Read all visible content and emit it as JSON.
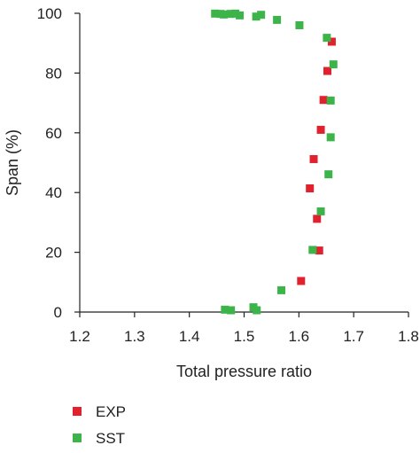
{
  "chart_data": {
    "type": "scatter",
    "xlabel": "Total pressure ratio",
    "ylabel": "Span (%)",
    "xlim": [
      1.2,
      1.8
    ],
    "ylim": [
      0,
      100
    ],
    "x_ticks": [
      "1.2",
      "1.3",
      "1.4",
      "1.5",
      "1.6",
      "1.7",
      "1.8"
    ],
    "y_ticks": [
      "0",
      "20",
      "40",
      "60",
      "80",
      "100"
    ],
    "grid": false,
    "legend_position": "bottom-left",
    "series": [
      {
        "name": "EXP",
        "color": "#e0212e",
        "marker": "square",
        "points": [
          [
            1.66,
            90.5
          ],
          [
            1.652,
            80.7
          ],
          [
            1.645,
            71.0
          ],
          [
            1.64,
            61.0
          ],
          [
            1.627,
            51.2
          ],
          [
            1.62,
            41.4
          ],
          [
            1.633,
            31.2
          ],
          [
            1.637,
            20.6
          ],
          [
            1.604,
            10.4
          ]
        ]
      },
      {
        "name": "SST",
        "color": "#3cb44a",
        "marker": "square",
        "points": [
          [
            1.447,
            99.9
          ],
          [
            1.457,
            99.8
          ],
          [
            1.463,
            99.6
          ],
          [
            1.475,
            99.8
          ],
          [
            1.484,
            99.9
          ],
          [
            1.492,
            99.3
          ],
          [
            1.522,
            98.9
          ],
          [
            1.531,
            99.5
          ],
          [
            1.56,
            97.8
          ],
          [
            1.601,
            96.0
          ],
          [
            1.651,
            91.8
          ],
          [
            1.663,
            82.9
          ],
          [
            1.658,
            70.8
          ],
          [
            1.658,
            58.5
          ],
          [
            1.654,
            46.1
          ],
          [
            1.64,
            33.7
          ],
          [
            1.625,
            20.8
          ],
          [
            1.568,
            7.3
          ],
          [
            1.517,
            1.6
          ],
          [
            1.523,
            0.6
          ],
          [
            1.476,
            0.6
          ],
          [
            1.465,
            0.8
          ]
        ]
      }
    ]
  }
}
